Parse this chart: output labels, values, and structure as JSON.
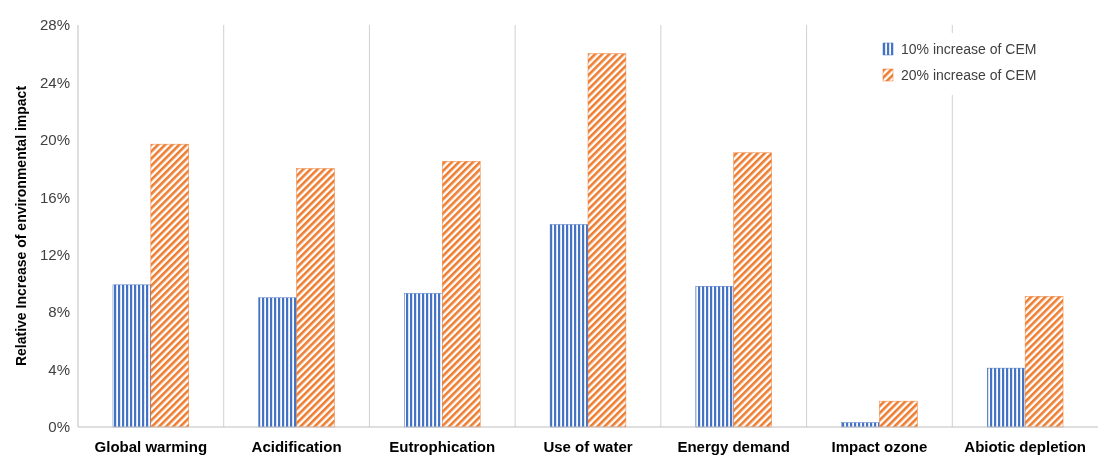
{
  "chart_data": {
    "type": "bar",
    "ylabel": "Relative Increase of environmental impact",
    "categories": [
      "Global warming",
      "Acidification",
      "Eutrophication",
      "Use of water",
      "Energy demand",
      "Impact ozone",
      "Abiotic depletion"
    ],
    "series": [
      {
        "name": "10% increase of CEM",
        "color": "#4472c4",
        "values": [
          9.9,
          9.0,
          9.3,
          14.1,
          9.8,
          0.3,
          4.1
        ]
      },
      {
        "name": "20% increase of CEM",
        "color": "#ed7d31",
        "values": [
          19.7,
          18.0,
          18.5,
          26.0,
          19.1,
          1.8,
          9.1
        ]
      }
    ],
    "ylim": [
      0,
      28
    ],
    "yticks": [
      {
        "value": 0,
        "label": "0%"
      },
      {
        "value": 4,
        "label": "4%"
      },
      {
        "value": 8,
        "label": "8%"
      },
      {
        "value": 12,
        "label": "12%"
      },
      {
        "value": 16,
        "label": "16%"
      },
      {
        "value": 20,
        "label": "20%"
      },
      {
        "value": 24,
        "label": "24%"
      },
      {
        "value": 28,
        "label": "28%"
      }
    ],
    "grid": "x",
    "legend": "top right"
  }
}
